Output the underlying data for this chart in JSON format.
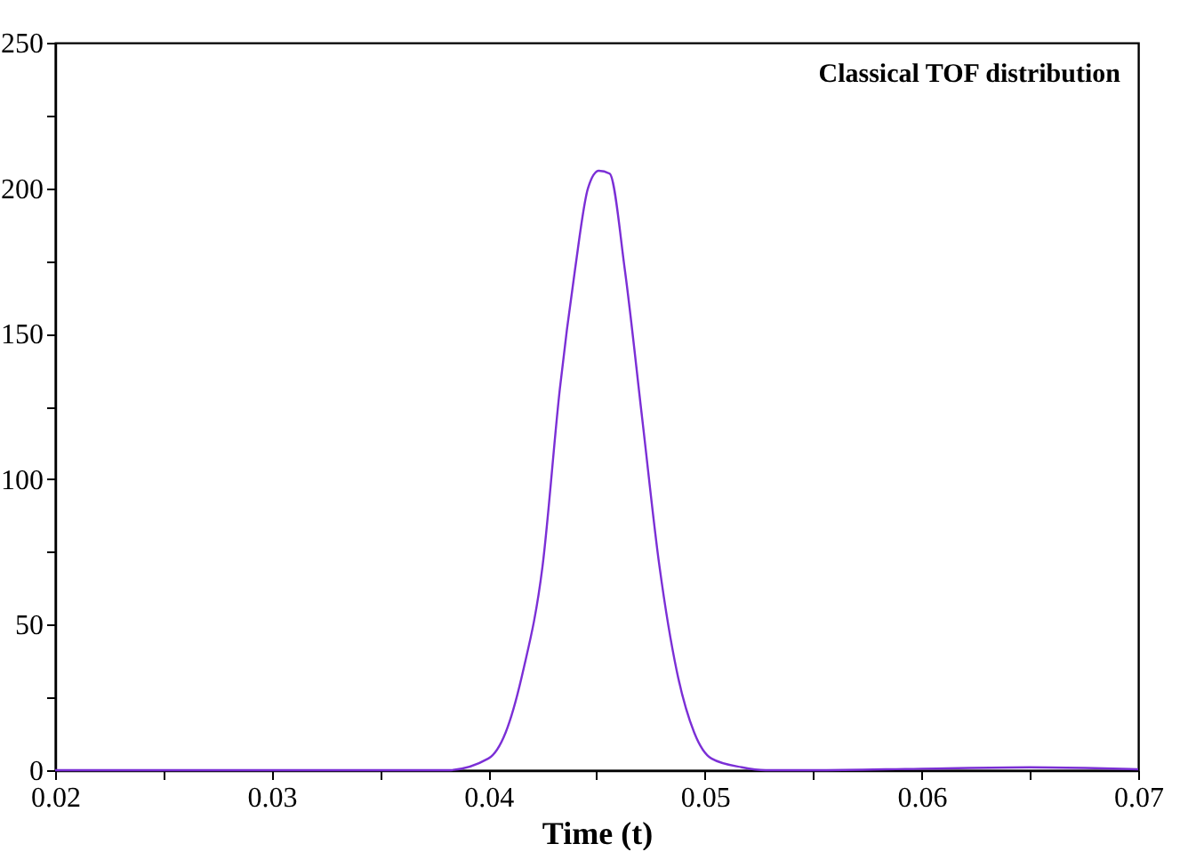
{
  "chart_data": {
    "type": "line",
    "title": "Classical  TOF distribution",
    "xlabel": "Time (t)",
    "x": [
      0.02,
      0.025,
      0.03,
      0.035,
      0.0381,
      0.04,
      0.0408,
      0.0416,
      0.0425,
      0.0433,
      0.044,
      0.0446,
      0.0451,
      0.0456,
      0.0463,
      0.0471,
      0.0479,
      0.0487,
      0.0495,
      0.0503,
      0.0517,
      0.0528,
      0.055,
      0.06,
      0.065,
      0.068,
      0.07
    ],
    "series": [
      {
        "color": "#7b2fd6",
        "values": [
          0,
          0,
          0,
          0,
          0,
          4,
          13,
          34,
          70,
          131,
          172,
          200,
          206,
          205,
          172,
          121,
          70,
          34,
          13,
          4,
          1,
          0,
          0,
          0.5,
          1,
          0.7,
          0.3
        ]
      }
    ],
    "xlim": [
      0.02,
      0.07
    ],
    "xticks": [
      0.02,
      {
        "value": 0.025,
        "label": null
      },
      0.03,
      {
        "value": 0.035,
        "label": null
      },
      0.04,
      {
        "value": 0.045,
        "label": null
      },
      0.05,
      {
        "value": 0.055,
        "label": null
      },
      0.06,
      {
        "value": 0.065,
        "label": null
      },
      0.07
    ],
    "ylim": [
      0,
      250
    ],
    "yticks": [
      0,
      {
        "value": 25,
        "label": null
      },
      50,
      {
        "value": 75,
        "label": null
      },
      100,
      {
        "value": 125,
        "label": null
      },
      150,
      {
        "value": 175,
        "label": null
      },
      200,
      {
        "value": 225,
        "label": null
      },
      250
    ],
    "grid": false,
    "marker": "none",
    "line_style": "solid"
  }
}
